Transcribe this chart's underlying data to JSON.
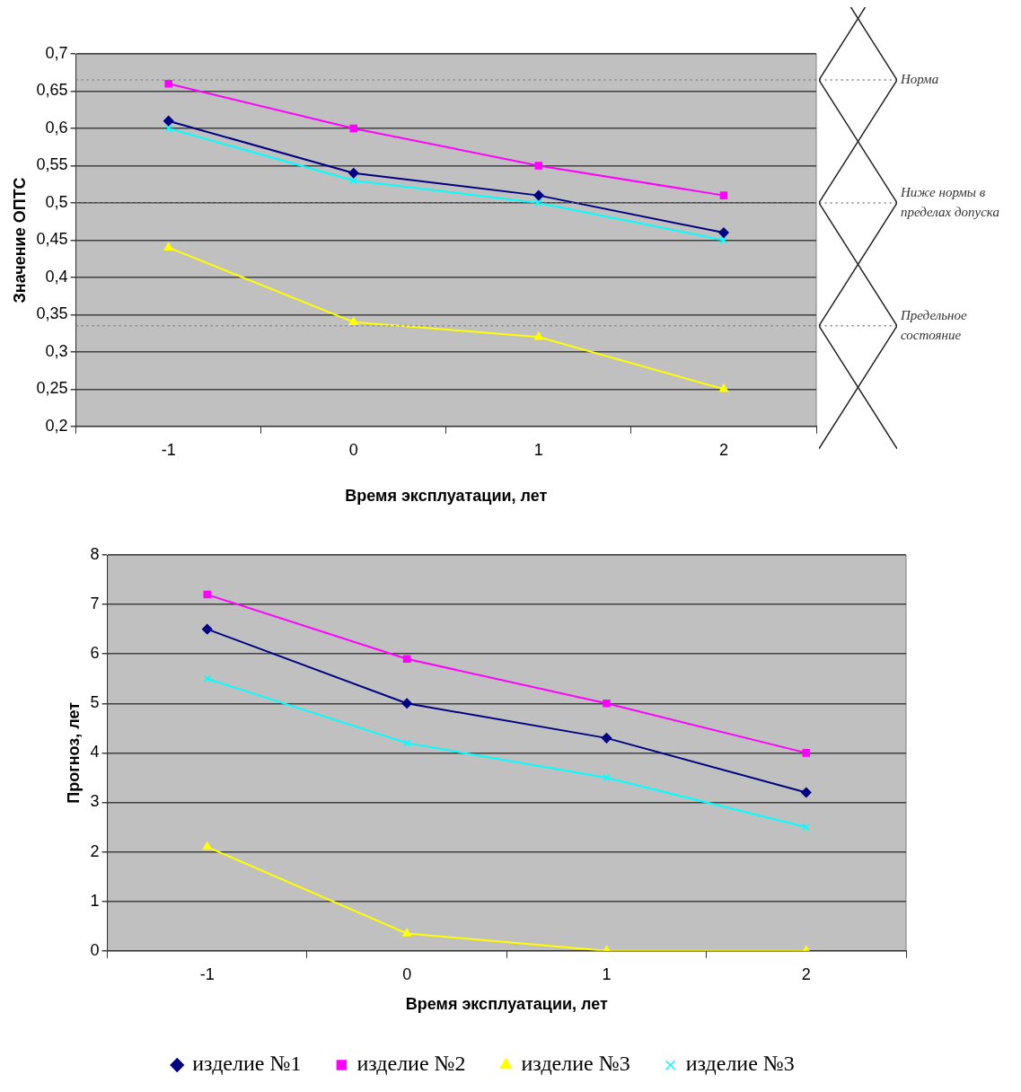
{
  "chart_data": [
    {
      "type": "line",
      "xlabel": "Время эксплуатации, лет",
      "ylabel": "Значение ОПТС",
      "categories": [
        "-1",
        "0",
        "1",
        "2"
      ],
      "ylim": [
        0.2,
        0.7
      ],
      "yticks": [
        {
          "value": 0.2,
          "label": "0,2"
        },
        {
          "value": 0.25,
          "label": "0,25"
        },
        {
          "value": 0.3,
          "label": "0,3"
        },
        {
          "value": 0.35,
          "label": "0,35"
        },
        {
          "value": 0.4,
          "label": "0,4"
        },
        {
          "value": 0.45,
          "label": "0,45"
        },
        {
          "value": 0.5,
          "label": "0,5"
        },
        {
          "value": 0.55,
          "label": "0,55"
        },
        {
          "value": 0.6,
          "label": "0,6"
        },
        {
          "value": 0.65,
          "label": "0,65"
        },
        {
          "value": 0.7,
          "label": "0,7"
        }
      ],
      "grid": "y",
      "legend": false,
      "ref_lines": [
        {
          "axis": "y",
          "value": 0.665,
          "label": "Норма",
          "line_style": "dotted",
          "color": "#808080"
        },
        {
          "axis": "y",
          "value": 0.5,
          "label": "Ниже нормы в пределах допуска",
          "line_style": "dotted",
          "color": "#808080"
        },
        {
          "axis": "y",
          "value": 0.335,
          "label": "Предельное состояние",
          "line_style": "dotted",
          "color": "#808080"
        }
      ],
      "series": [
        {
          "color": "#000080",
          "marker": "diamond",
          "values": [
            0.61,
            0.54,
            0.51,
            0.46
          ]
        },
        {
          "color": "#ff00ff",
          "marker": "square",
          "values": [
            0.66,
            0.6,
            0.55,
            0.51
          ]
        },
        {
          "color": "#ffff00",
          "marker": "triangle",
          "values": [
            0.44,
            0.34,
            0.32,
            0.25
          ]
        },
        {
          "color": "#00ffff",
          "marker": "cross",
          "values": [
            0.6,
            0.53,
            0.5,
            0.45
          ]
        }
      ]
    },
    {
      "type": "line",
      "xlabel": "Время эксплуатации, лет",
      "ylabel": "Прогноз, лет",
      "categories": [
        "-1",
        "0",
        "1",
        "2"
      ],
      "ylim": [
        0,
        8
      ],
      "yticks": [
        0,
        1,
        2,
        3,
        4,
        5,
        6,
        7,
        8
      ],
      "grid": "y",
      "legend": "bottom",
      "series": [
        {
          "name": "изделие №1",
          "color": "#000080",
          "marker": "diamond",
          "values": [
            6.5,
            5.0,
            4.3,
            3.2
          ]
        },
        {
          "name": "изделие №2",
          "color": "#ff00ff",
          "marker": "square",
          "values": [
            7.2,
            5.9,
            5.0,
            4.0
          ]
        },
        {
          "name": "изделие №3",
          "color": "#ffff00",
          "marker": "triangle",
          "values": [
            2.1,
            0.35,
            0,
            0
          ]
        },
        {
          "name": "изделие №3",
          "color": "#00ffff",
          "marker": "cross",
          "values": [
            5.5,
            4.2,
            3.5,
            2.5
          ]
        }
      ]
    }
  ]
}
